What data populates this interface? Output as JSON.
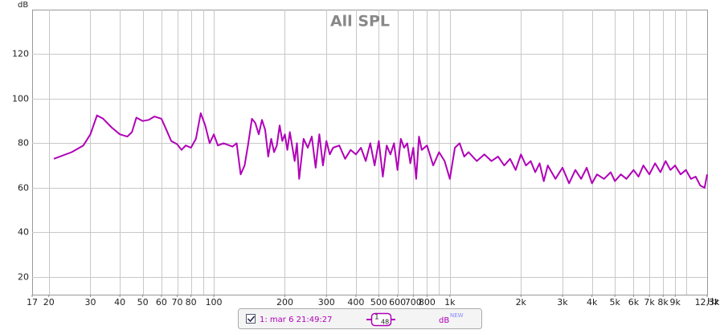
{
  "chart_data": {
    "type": "line",
    "title": "All SPL",
    "y_label": "dB",
    "x_label": "Hz",
    "log_x": true,
    "grid": true,
    "xlim": [
      17,
      12300
    ],
    "ylim": [
      12,
      140
    ],
    "yticks": [
      20,
      40,
      60,
      80,
      100,
      120
    ],
    "xticks": [
      17,
      20,
      30,
      40,
      50,
      60,
      70,
      80,
      100,
      200,
      300,
      400,
      500,
      600,
      700,
      800,
      {
        "value": 1000,
        "label": "1k"
      },
      {
        "value": 2000,
        "label": "2k"
      },
      {
        "value": 3000,
        "label": "3k"
      },
      {
        "value": 4000,
        "label": "4k"
      },
      {
        "value": 5000,
        "label": "5k"
      },
      {
        "value": 6000,
        "label": "6k"
      },
      {
        "value": 7000,
        "label": "7k"
      },
      {
        "value": 8000,
        "label": "8k"
      },
      {
        "value": 9000,
        "label": "9k"
      },
      {
        "value": 12300,
        "label": "12,3k"
      }
    ],
    "xgrid": [
      20,
      30,
      40,
      50,
      60,
      70,
      80,
      90,
      100,
      200,
      300,
      400,
      500,
      600,
      700,
      800,
      900,
      1000,
      2000,
      3000,
      4000,
      5000,
      6000,
      7000,
      8000,
      9000,
      10000
    ],
    "series": [
      {
        "name": "1: mar 6 21:49:27",
        "color": "#b000b8",
        "checked": true,
        "smoothing": [
          "1",
          "48"
        ],
        "unit": "dB",
        "unit_tag": "NEW",
        "x": [
          21,
          25,
          28,
          30,
          32,
          34,
          37,
          40,
          43,
          45,
          47,
          50,
          53,
          56,
          60,
          63,
          66,
          70,
          73,
          76,
          80,
          84,
          88,
          92,
          96,
          100,
          104,
          110,
          120,
          125,
          130,
          135,
          140,
          145,
          150,
          155,
          160,
          165,
          170,
          175,
          180,
          185,
          190,
          195,
          200,
          205,
          210,
          220,
          225,
          230,
          240,
          250,
          260,
          270,
          280,
          290,
          300,
          310,
          320,
          340,
          360,
          380,
          400,
          420,
          440,
          460,
          480,
          500,
          520,
          540,
          560,
          580,
          600,
          620,
          640,
          660,
          680,
          700,
          720,
          740,
          760,
          800,
          850,
          900,
          950,
          1000,
          1050,
          1100,
          1150,
          1200,
          1300,
          1400,
          1500,
          1600,
          1700,
          1800,
          1900,
          2000,
          2100,
          2200,
          2300,
          2400,
          2500,
          2600,
          2800,
          3000,
          3200,
          3400,
          3600,
          3800,
          4000,
          4200,
          4500,
          4800,
          5000,
          5300,
          5600,
          6000,
          6300,
          6600,
          7000,
          7400,
          7800,
          8200,
          8600,
          9000,
          9500,
          10000,
          10500,
          11000,
          11500,
          12000,
          12300
        ],
        "values": [
          73,
          76,
          79,
          84,
          92.5,
          91,
          87,
          84,
          83,
          85,
          91.5,
          90,
          90.5,
          92,
          91,
          86,
          81,
          79.5,
          77,
          79,
          78,
          82,
          93.5,
          88,
          80,
          84,
          79,
          80,
          78.5,
          80,
          66,
          70,
          80,
          91,
          89,
          84,
          90.5,
          86,
          74,
          82,
          76,
          79,
          88,
          81,
          84,
          77,
          85,
          72,
          80,
          64,
          82,
          78,
          83,
          69,
          84,
          70,
          81,
          75,
          78,
          79,
          73,
          77,
          75,
          78,
          72,
          80,
          70,
          81,
          65,
          79,
          75,
          80,
          68,
          82,
          78,
          80,
          71,
          78,
          64,
          83,
          77,
          79,
          70,
          76,
          72,
          64,
          78,
          80,
          74,
          76,
          72,
          75,
          72,
          74,
          70,
          73,
          68,
          75,
          70,
          72,
          67,
          71,
          63,
          70,
          64,
          69,
          62,
          68,
          64,
          69,
          62,
          66,
          64,
          67,
          63,
          66,
          64,
          68,
          65,
          70,
          66,
          71,
          67,
          72,
          68,
          70,
          66,
          68,
          64,
          65,
          61,
          60,
          66
        ]
      }
    ]
  }
}
